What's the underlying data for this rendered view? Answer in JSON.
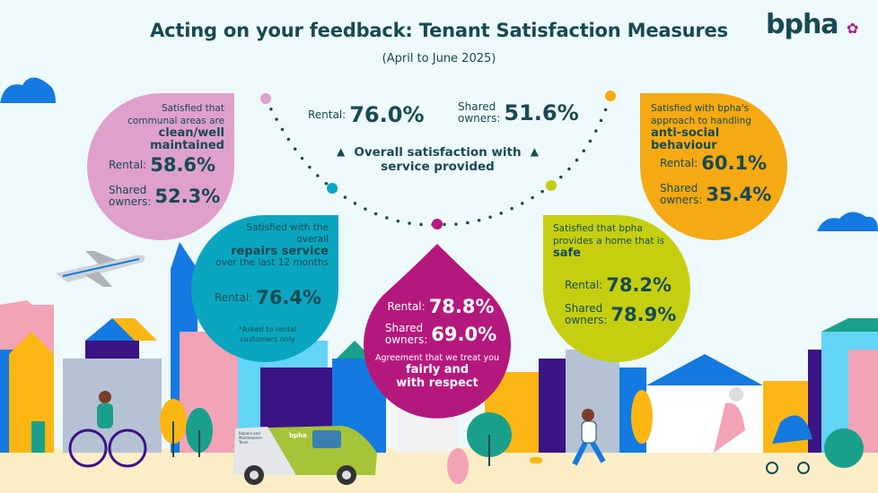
{
  "header": {
    "title": "Acting on your feedback: Tenant Satisfaction Measures",
    "subtitle": "(April to June 2025)",
    "logo_text": "bpha"
  },
  "colors": {
    "text": "#174a52",
    "pink": "#e0a0cc",
    "orange": "#f5a912",
    "teal": "#0aa6c0",
    "lime": "#c5cf10",
    "magenta": "#b5187c"
  },
  "overall": {
    "rental_label": "Rental:",
    "rental_value": "76.0%",
    "shared_label_1": "Shared",
    "shared_label_2": "owners:",
    "shared_value": "51.6%",
    "caption": "Overall satisfaction with service provided"
  },
  "communal": {
    "line1": "Satisfied that",
    "line2": "communal areas are",
    "highlight": "clean/well maintained",
    "rental_label": "Rental:",
    "rental_value": "58.6%",
    "shared_label_1": "Shared",
    "shared_label_2": "owners:",
    "shared_value": "52.3%"
  },
  "asb": {
    "line1": "Satisfied with bpha's",
    "line2": "approach to handling",
    "highlight": "anti-social behaviour",
    "rental_label": "Rental:",
    "rental_value": "60.1%",
    "shared_label_1": "Shared",
    "shared_label_2": "owners:",
    "shared_value": "35.4%"
  },
  "repairs": {
    "line1": "Satisfied with the",
    "line2": "overall",
    "highlight": "repairs service",
    "line3": "over the last 12 months",
    "rental_label": "Rental:",
    "rental_value": "76.4%",
    "note_1": "*Asked to rental",
    "note_2": "customers only"
  },
  "safe": {
    "line1": "Satisfied that bpha",
    "line2": "provides a home that is",
    "highlight": "safe",
    "rental_label": "Rental:",
    "rental_value": "78.2%",
    "shared_label_1": "Shared",
    "shared_label_2": "owners:",
    "shared_value": "78.9%"
  },
  "respect": {
    "rental_label": "Rental:",
    "rental_value": "78.8%",
    "shared_label_1": "Shared",
    "shared_label_2": "owners:",
    "shared_value": "69.0%",
    "line1": "Agreement that we treat you",
    "highlight_1": "fairly and",
    "highlight_2": "with respect"
  },
  "van": {
    "brand": "bpha",
    "team": "Repairs and Maintenance Team"
  }
}
